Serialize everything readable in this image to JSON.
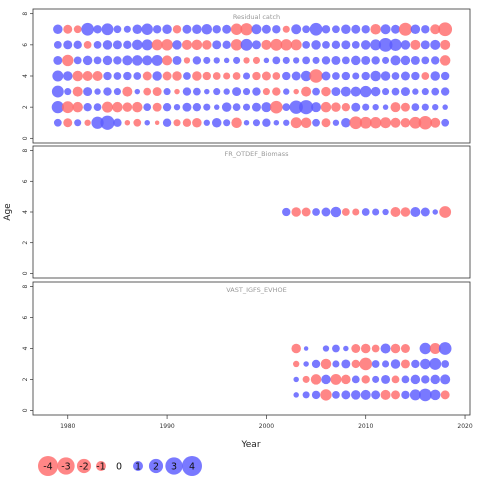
{
  "chart_data": {
    "type": "scatter",
    "subtype": "bubble",
    "xlabel": "Year",
    "ylabel": "Age",
    "x_ticks": [
      1980,
      1990,
      2000,
      2010,
      2020
    ],
    "x_range": [
      1976.5,
      2020.5
    ],
    "colors": {
      "positive": "#5b5bff",
      "negative": "#ff6b6b"
    },
    "legend": {
      "placement": "bottom-left",
      "values": [
        -4,
        -3,
        -2,
        -1,
        0,
        1,
        2,
        3,
        4
      ],
      "labels": [
        "-4",
        "-3",
        "-2",
        "-1",
        "0",
        "1",
        "2",
        "3",
        "4"
      ]
    },
    "panels": [
      {
        "title": "Residual catch",
        "y_ticks": [
          0,
          2,
          4,
          6,
          8
        ],
        "y_labels": [
          "0",
          "2",
          "4",
          "6",
          "8"
        ],
        "y_range": [
          -0.3,
          8.3
        ],
        "ages": [
          1,
          2,
          3,
          4,
          5,
          6,
          7
        ],
        "years": [
          1979,
          2018
        ],
        "residuals": [
          [
            0.6,
            -0.8,
            0.5,
            -0.4,
            1.5,
            2.0,
            0.7,
            -0.3,
            -0.6,
            0.3,
            -0.2,
            0.7,
            -0.5,
            -0.7,
            -0.9,
            0.4,
            0.9,
            0.5,
            -1.1,
            0.3,
            0.5,
            0.7,
            0.3,
            0.4,
            -1.2,
            -1.1,
            0.6,
            -0.8,
            0.4,
            0.9,
            -1.6,
            -1.4,
            -1.3,
            -1.2,
            -1.0,
            -0.9,
            -1.4,
            -1.8,
            -1.0,
            0.6
          ],
          [
            1.5,
            -1.4,
            -1.1,
            0.7,
            0.6,
            -1.2,
            -1.1,
            -0.9,
            -1.1,
            0.6,
            -0.8,
            0.7,
            0.4,
            0.8,
            0.7,
            0.5,
            0.3,
            0.9,
            0.6,
            0.5,
            0.8,
            1.0,
            -1.6,
            0.6,
            1.8,
            2.0,
            1.0,
            -1.1,
            -0.9,
            -0.7,
            0.8,
            0.5,
            0.4,
            0.3,
            -1.0,
            -0.8,
            0.6,
            0.5,
            0.4,
            0.3
          ],
          [
            1.4,
            0.5,
            -1.0,
            0.8,
            0.4,
            0.7,
            0.5,
            -1.0,
            0.3,
            -0.6,
            -0.8,
            0.5,
            -0.3,
            0.7,
            0.6,
            0.3,
            0.5,
            0.4,
            0.8,
            0.5,
            0.7,
            -0.5,
            -0.7,
            0.4,
            -0.3,
            -1.0,
            0.6,
            -0.9,
            0.8,
            1.0,
            1.0,
            1.3,
            0.9,
            0.5,
            0.6,
            0.8,
            0.4,
            0.5,
            0.6,
            0.7
          ],
          [
            1.2,
            0.9,
            -1.1,
            -1.0,
            -1.0,
            0.7,
            0.6,
            0.7,
            0.6,
            -0.8,
            0.9,
            -0.8,
            -0.9,
            0.6,
            -0.9,
            -0.7,
            -0.6,
            -0.5,
            -0.6,
            0.5,
            -0.7,
            -0.8,
            -0.6,
            0.7,
            0.8,
            1.1,
            -1.8,
            0.8,
            0.6,
            0.7,
            0.5,
            0.7,
            1.1,
            0.9,
            0.6,
            0.8,
            0.7,
            -0.6,
            0.9,
            0.7
          ],
          [
            0.8,
            -1.3,
            0.6,
            0.9,
            0.6,
            0.9,
            0.7,
            1.0,
            1.1,
            1.0,
            1.2,
            -1.0,
            0.8,
            -0.4,
            0.7,
            0.5,
            0.4,
            0.3,
            0.5,
            -0.4,
            -0.5,
            0.3,
            0.6,
            0.5,
            0.4,
            0.6,
            0.5,
            0.7,
            0.8,
            0.6,
            0.9,
            0.8,
            0.7,
            0.5,
            1.0,
            0.9,
            0.8,
            0.6,
            0.7,
            -1.1
          ],
          [
            0.6,
            0.8,
            0.7,
            -0.6,
            0.6,
            0.9,
            0.8,
            0.7,
            1.1,
            1.2,
            -1.2,
            -1.3,
            0.9,
            -1.0,
            -1.1,
            -0.9,
            0.8,
            0.7,
            -1.3,
            1.4,
            0.8,
            -1.0,
            -1.4,
            -1.3,
            -1.2,
            0.6,
            0.9,
            0.6,
            0.7,
            0.8,
            0.6,
            0.9,
            1.2,
            1.9,
            1.5,
            0.9,
            -1.0,
            0.8,
            1.0,
            -1.0
          ],
          [
            0.9,
            -0.8,
            -0.6,
            1.6,
            0.7,
            1.4,
            0.6,
            0.5,
            0.9,
            1.3,
            0.7,
            0.9,
            -0.7,
            0.8,
            0.9,
            1.1,
            0.7,
            0.8,
            -1.3,
            -1.5,
            1.0,
            0.8,
            0.7,
            -0.5,
            1.0,
            0.6,
            1.6,
            0.7,
            0.6,
            0.9,
            0.8,
            0.7,
            -1.1,
            1.0,
            0.8,
            -1.7,
            0.9,
            0.7,
            -1.0,
            -1.9
          ]
        ]
      },
      {
        "title": "FR_OTDEF_Biomass",
        "y_ticks": [
          0,
          2,
          4,
          6,
          8
        ],
        "y_labels": [
          "0",
          "2",
          "4",
          "6",
          "8"
        ],
        "y_range": [
          -0.3,
          8.3
        ],
        "ages": [
          4
        ],
        "years": [
          2002,
          2018
        ],
        "residuals": [
          [
            0.7,
            -0.9,
            -0.8,
            0.6,
            0.8,
            1.1,
            -0.6,
            -0.5,
            0.6,
            0.5,
            0.4,
            -1.0,
            -0.9,
            1.0,
            0.8,
            0.3,
            -1.4
          ]
        ]
      },
      {
        "title": "VAST_IGFS_EVHOE",
        "y_ticks": [
          0,
          2,
          4,
          6,
          8
        ],
        "y_labels": [
          "0",
          "2",
          "4",
          "6",
          "8"
        ],
        "y_range": [
          -0.3,
          8.3
        ],
        "ages": [
          1,
          2,
          3,
          4
        ],
        "years": [
          2003,
          2018
        ],
        "residuals": [
          [
            0.3,
            0.5,
            0.7,
            -1.3,
            0.6,
            0.8,
            0.9,
            1.0,
            0.8,
            -1.0,
            -0.8,
            0.7,
            1.2,
            1.6,
            1.1,
            -0.8
          ],
          [
            0.3,
            -0.5,
            -1.1,
            0.9,
            -1.2,
            -0.9,
            0.6,
            -0.7,
            0.5,
            0.8,
            -0.6,
            0.6,
            0.9,
            0.7,
            0.9,
            1.0
          ],
          [
            -0.4,
            0.3,
            0.7,
            -1.1,
            0.5,
            0.8,
            -0.7,
            -1.6,
            0.6,
            0.5,
            0.9,
            -0.8,
            0.7,
            1.1,
            1.4,
            0.6
          ],
          [
            -0.9,
            0.2,
            0.0,
            0.4,
            0.6,
            0.3,
            -0.8,
            -0.9,
            -0.6,
            1.0,
            -0.9,
            -0.8,
            0.0,
            1.3,
            -1.2,
            1.6
          ]
        ]
      }
    ]
  }
}
